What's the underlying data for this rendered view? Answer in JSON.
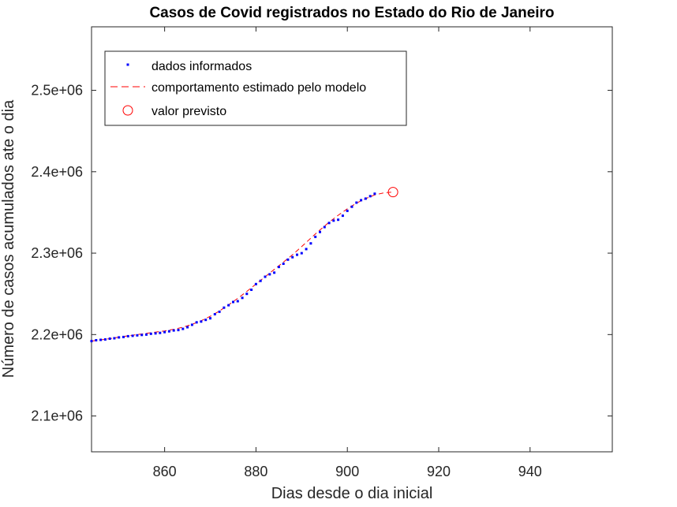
{
  "chart_data": {
    "type": "line",
    "title": "Casos de Covid registrados no Estado do Rio de Janeiro",
    "xlabel": "Dias desde o dia inicial",
    "ylabel": "Número de casos acumulados ate o dia",
    "xlim": [
      844,
      958
    ],
    "ylim": [
      2056000,
      2578000
    ],
    "grid": false,
    "legend_position": "top-left",
    "x_ticks": [
      {
        "value": 860,
        "label": "860"
      },
      {
        "value": 880,
        "label": "880"
      },
      {
        "value": 900,
        "label": "900"
      },
      {
        "value": 920,
        "label": "920"
      },
      {
        "value": 940,
        "label": "940"
      }
    ],
    "y_ticks": [
      {
        "value": 2100000,
        "label": "2.1e+06"
      },
      {
        "value": 2200000,
        "label": "2.2e+06"
      },
      {
        "value": 2300000,
        "label": "2.3e+06"
      },
      {
        "value": 2400000,
        "label": "2.4e+06"
      },
      {
        "value": 2500000,
        "label": "2.5e+06"
      }
    ],
    "series": [
      {
        "name": "dados informados",
        "style": "markers",
        "color": "#0000ff",
        "x": [
          844,
          845,
          846,
          847,
          848,
          849,
          850,
          851,
          852,
          853,
          854,
          855,
          856,
          857,
          858,
          859,
          860,
          861,
          862,
          863,
          864,
          865,
          866,
          867,
          868,
          869,
          870,
          871,
          872,
          873,
          874,
          875,
          876,
          877,
          878,
          879,
          880,
          881,
          882,
          883,
          884,
          885,
          886,
          887,
          888,
          889,
          890,
          891,
          892,
          893,
          894,
          895,
          896,
          897,
          898,
          899,
          900,
          901,
          902,
          903,
          904,
          905,
          906
        ],
        "y": [
          2192000,
          2193000,
          2193500,
          2194000,
          2195000,
          2195500,
          2196500,
          2197000,
          2198000,
          2198500,
          2199000,
          2199500,
          2200000,
          2201000,
          2201500,
          2202000,
          2203000,
          2204000,
          2205000,
          2205500,
          2207000,
          2209000,
          2212000,
          2215000,
          2216000,
          2218000,
          2220000,
          2225000,
          2228000,
          2233000,
          2236000,
          2240000,
          2241000,
          2245000,
          2250000,
          2255000,
          2262000,
          2266000,
          2271000,
          2274000,
          2276000,
          2283000,
          2287000,
          2292000,
          2295000,
          2298000,
          2300000,
          2305000,
          2312000,
          2320000,
          2326000,
          2332000,
          2337000,
          2340000,
          2341000,
          2346000,
          2352000,
          2357000,
          2362000,
          2365000,
          2367000,
          2370000,
          2373000
        ]
      },
      {
        "name": "comportamento estimado pelo modelo",
        "style": "dashed",
        "color": "#ff0000",
        "x": [
          844,
          846,
          848,
          850,
          852,
          854,
          856,
          858,
          860,
          862,
          864,
          866,
          868,
          870,
          872,
          874,
          876,
          878,
          880,
          882,
          884,
          886,
          888,
          890,
          892,
          894,
          896,
          898,
          900,
          902,
          904,
          906,
          908,
          910
        ],
        "y": [
          2192000,
          2193500,
          2195000,
          2196800,
          2198500,
          2200000,
          2201500,
          2203000,
          2204500,
          2206500,
          2209000,
          2212500,
          2217000,
          2222500,
          2229000,
          2236500,
          2244500,
          2253000,
          2262000,
          2271000,
          2280000,
          2289000,
          2298000,
          2308000,
          2318500,
          2328500,
          2338000,
          2346500,
          2354500,
          2361500,
          2367000,
          2371500,
          2374000,
          2375000
        ]
      },
      {
        "name": "valor previsto",
        "style": "circle",
        "color": "#ff0000",
        "x": [
          910
        ],
        "y": [
          2375000
        ]
      }
    ]
  }
}
